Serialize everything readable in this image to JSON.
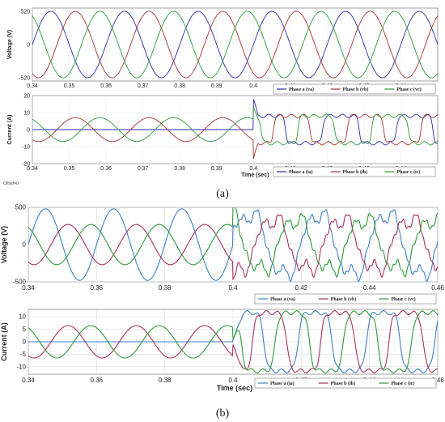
{
  "chart_data": [
    {
      "panel": "a",
      "type": "line",
      "ylabel": "Voltage (V)",
      "x_range": [
        0.34,
        0.45
      ],
      "ylim": [
        -570,
        570
      ],
      "yticks": [
        520,
        0,
        -520
      ],
      "xticks": [
        0.34,
        0.35,
        0.36,
        0.37,
        0.38,
        0.39,
        0.4,
        0.41,
        0.42,
        0.43,
        0.44
      ],
      "xticklabels": [
        "0.34",
        "0.35",
        "0.36",
        "0.37",
        "0.38",
        "0.39",
        "0.4",
        "0.41",
        "0.42",
        "0.43",
        "0.44"
      ],
      "frequency_hz": 50,
      "amplitude": 520,
      "series": [
        {
          "name": "Phase a (va)",
          "color": "#2a2aa8",
          "phase_deg": 0
        },
        {
          "name": "Phase b (vb)",
          "color": "#a83232",
          "phase_deg": -120
        },
        {
          "name": "Phase c (vc)",
          "color": "#2e9a3a",
          "phase_deg": 120
        }
      ]
    },
    {
      "panel": "a",
      "type": "line",
      "ylabel": "Current (A)",
      "xlabel": "Time (sec)",
      "x_range": [
        0.34,
        0.45
      ],
      "ylim": [
        -20,
        20
      ],
      "yticks": [
        20,
        10,
        0,
        -10,
        -20
      ],
      "xticks": [
        0.34,
        0.35,
        0.36,
        0.37,
        0.38,
        0.39,
        0.4,
        0.41,
        0.42,
        0.43,
        0.44
      ],
      "xticklabels": [
        "0.34",
        "0.35",
        "0.36",
        "0.37",
        "0.38",
        "0.39",
        "0.4",
        "0.41",
        "0.42",
        "0.43",
        "0.44"
      ],
      "frequency_hz": 50,
      "fault_time": 0.4,
      "pre_fault_amplitude": 7,
      "post_fault_amplitude": 8,
      "transient_peak": 18,
      "series": [
        {
          "name": "Phase a (ia)",
          "color": "#2a2aa8",
          "phase_deg": 0,
          "pre_fault_zero": true
        },
        {
          "name": "Phase b (ib)",
          "color": "#a83232",
          "phase_deg": -120
        },
        {
          "name": "Phase c (ic)",
          "color": "#2e9a3a",
          "phase_deg": 120
        }
      ]
    },
    {
      "panel": "b",
      "type": "line",
      "ylabel": "Voltage (V)",
      "x_range": [
        0.34,
        0.46
      ],
      "ylim": [
        -500,
        500
      ],
      "yticks": [
        500,
        0,
        -500
      ],
      "xticks": [
        0.34,
        0.36,
        0.38,
        0.4,
        0.42,
        0.44,
        0.46
      ],
      "xticklabels": [
        "0.34",
        "0.36",
        "0.38",
        "0.4",
        "0.42",
        "0.44",
        "0.46"
      ],
      "frequency_hz": 50,
      "fault_time": 0.4,
      "amplitude_a": 480,
      "amplitude_bc": 270,
      "series": [
        {
          "name": "Phase a (va)",
          "color": "#3f7fc6",
          "phase_deg": 0
        },
        {
          "name": "Phase b (vb)",
          "color": "#a8325a",
          "phase_deg": -120
        },
        {
          "name": "Phase c (vc)",
          "color": "#2e9a3a",
          "phase_deg": 120
        }
      ]
    },
    {
      "panel": "b",
      "type": "line",
      "ylabel": "Current (A)",
      "xlabel": "Time (sec)",
      "x_range": [
        0.34,
        0.46
      ],
      "ylim": [
        -13,
        13
      ],
      "yticks": [
        10,
        5,
        0,
        -5,
        -10
      ],
      "xticks": [
        0.34,
        0.36,
        0.38,
        0.4,
        0.42,
        0.44,
        0.46
      ],
      "xticklabels": [
        "0.34",
        "0.36",
        "0.38",
        "0.4",
        "0.42",
        "0.44",
        "0.46"
      ],
      "frequency_hz": 50,
      "fault_time": 0.4,
      "pre_fault_amplitude": 6.5,
      "post_fault_amplitude": 12,
      "series": [
        {
          "name": "Phase a (ia)",
          "color": "#3f7fc6",
          "phase_deg": 0,
          "pre_fault_zero": true
        },
        {
          "name": "Phase b (ib)",
          "color": "#a8325a",
          "phase_deg": -120
        },
        {
          "name": "Phase c (ic)",
          "color": "#2e9a3a",
          "phase_deg": 120
        }
      ]
    }
  ],
  "captions": {
    "a": "(a)",
    "b": "(b)"
  },
  "time_label_a": "Time (sec)",
  "time_label_b": "Time (sec)",
  "offset_note": "Offset=0"
}
